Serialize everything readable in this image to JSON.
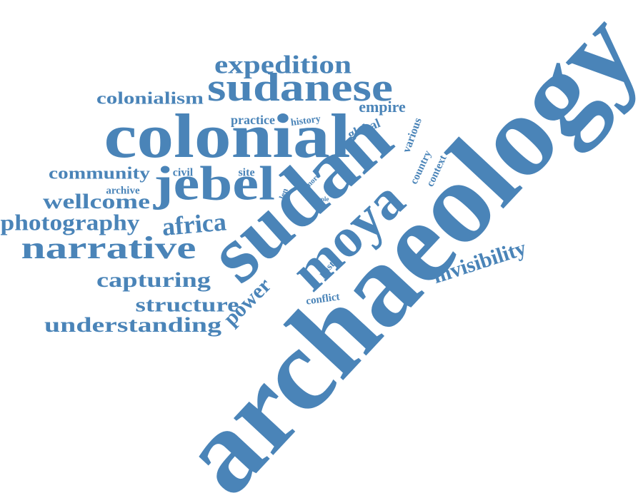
{
  "words": [
    "archaeology",
    "sudan",
    "moya",
    "colonial",
    "jebel",
    "sudanese",
    "expedition",
    "colonialism",
    "practice",
    "history",
    "empire",
    "global",
    "various",
    "country",
    "context",
    "community",
    "civil",
    "site",
    "archive",
    "len",
    "more",
    "role",
    "wellcome",
    "africa",
    "photography",
    "narrative",
    "invisibility",
    "past",
    "capturing",
    "power",
    "conflict",
    "structure",
    "understanding"
  ]
}
